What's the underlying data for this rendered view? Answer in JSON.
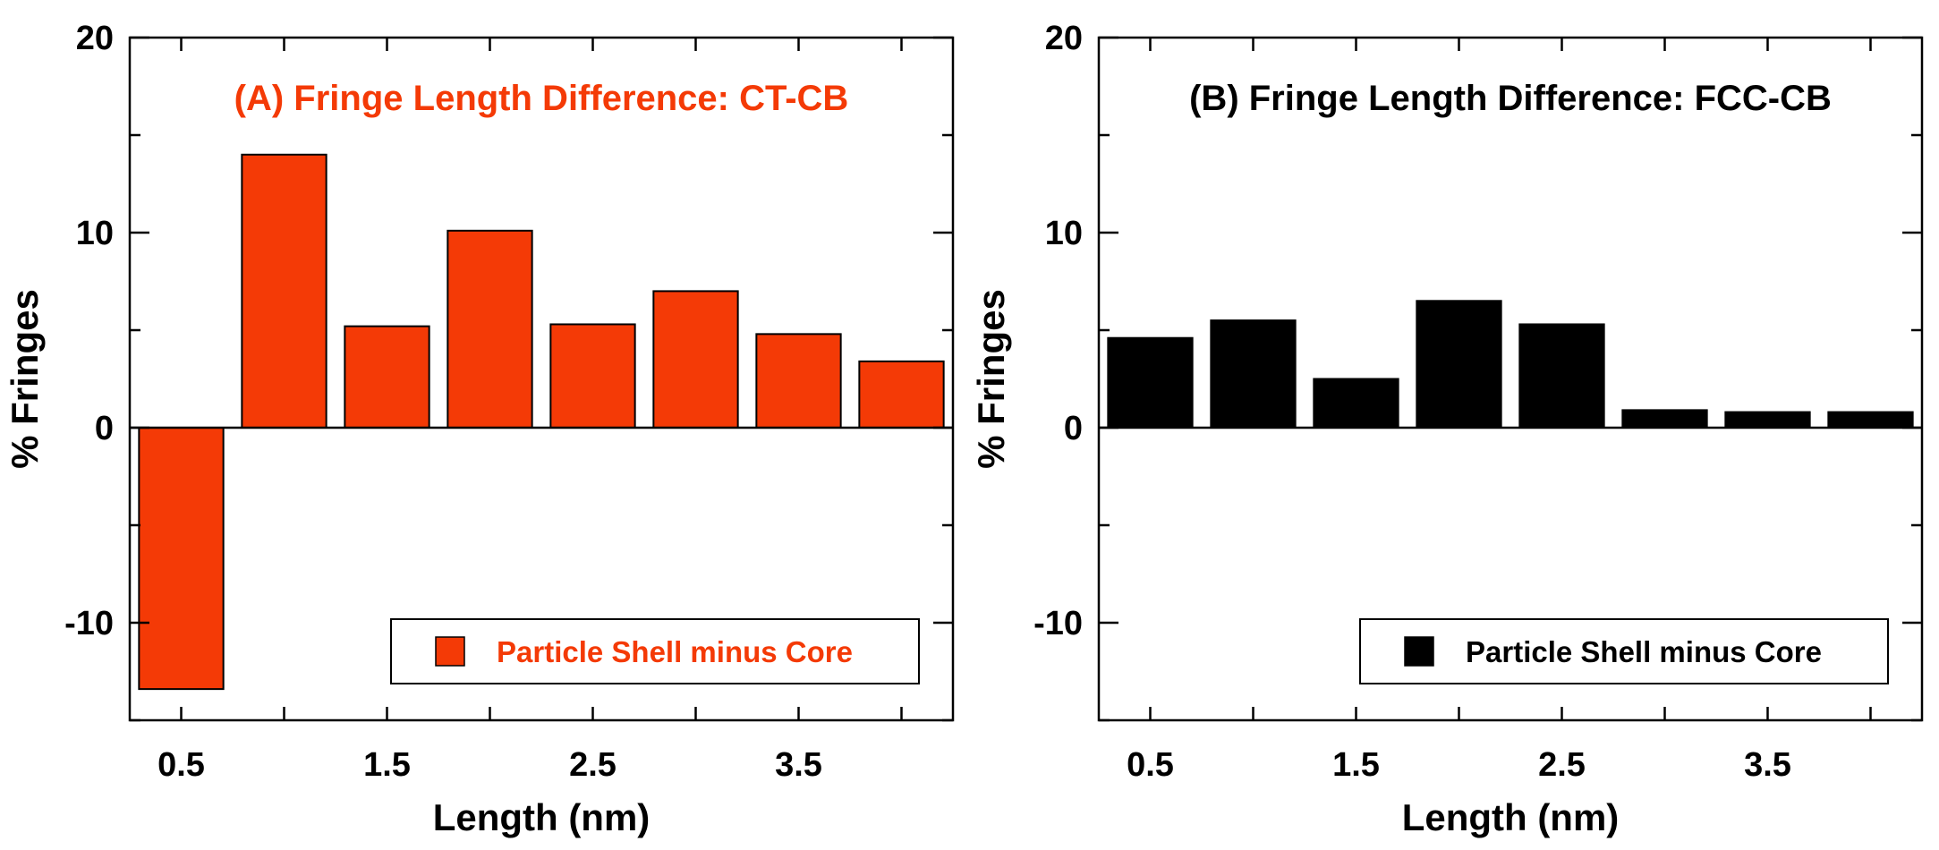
{
  "chart_data": [
    {
      "type": "bar",
      "title": "(A) Fringe Length Difference: CT-CB",
      "title_color": "#f43a06",
      "xlabel": "Length (nm)",
      "ylabel": "% Fringes",
      "ylim": [
        -15,
        20
      ],
      "y_ticks": [
        "20",
        "10",
        "0",
        "-10"
      ],
      "x_ticks": [
        "0.5",
        "1.5",
        "2.5",
        "3.5"
      ],
      "x": [
        0.5,
        1.0,
        1.5,
        2.0,
        2.5,
        3.0,
        3.5,
        4.0
      ],
      "series": [
        {
          "name": "Particle Shell minus Core",
          "color": "#f43a06",
          "values": [
            -13.4,
            14.0,
            5.2,
            10.1,
            5.3,
            7.0,
            4.8,
            3.4
          ]
        }
      ],
      "legend": {
        "label": "Particle Shell minus Core",
        "text_color": "#f43a06",
        "position": "bottom-right"
      }
    },
    {
      "type": "bar",
      "title": "(B) Fringe Length Difference: FCC-CB",
      "title_color": "#000000",
      "xlabel": "Length (nm)",
      "ylabel": "% Fringes",
      "ylim": [
        -15,
        20
      ],
      "y_ticks": [
        "20",
        "10",
        "0",
        "-10"
      ],
      "x_ticks": [
        "0.5",
        "1.5",
        "2.5",
        "3.5"
      ],
      "x": [
        0.5,
        1.0,
        1.5,
        2.0,
        2.5,
        3.0,
        3.5,
        4.0
      ],
      "series": [
        {
          "name": "Particle Shell minus Core",
          "color": "#000000",
          "values": [
            4.6,
            5.5,
            2.5,
            6.5,
            5.3,
            0.9,
            0.8,
            0.8
          ]
        }
      ],
      "legend": {
        "label": "Particle Shell minus Core",
        "text_color": "#000000",
        "position": "bottom-right"
      }
    }
  ]
}
